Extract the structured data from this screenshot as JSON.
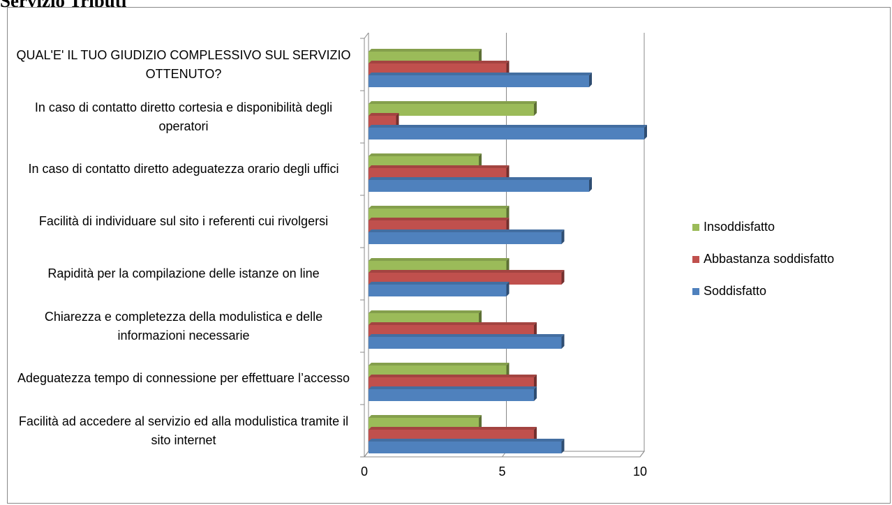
{
  "chart_data": {
    "type": "bar",
    "orientation": "horizontal",
    "title": "Servizio Tributi",
    "categories": [
      "Facilità ad accedere al servizio ed alla modulistica tramite il sito internet",
      "Adeguatezza tempo di connessione per effettuare l’accesso",
      "Chiarezza e completezza della modulistica e delle informazioni necessarie",
      "Rapidità per la compilazione delle istanze on line",
      "Facilità di individuare sul sito i referenti  cui rivolgersi",
      "In caso di contatto diretto adeguatezza orario degli uffici",
      "In caso di contatto diretto cortesia e disponibilità degli operatori",
      "QUAL'E' IL TUO GIUDIZIO COMPLESSIVO SUL SERVIZIO OTTENUTO?"
    ],
    "series": [
      {
        "name": "Insoddisfatto",
        "color": "#9bbb59",
        "values": [
          4,
          5,
          4,
          5,
          5,
          4,
          6,
          4
        ]
      },
      {
        "name": "Abbastanza soddisfatto",
        "color": "#c0504d",
        "values": [
          6,
          6,
          6,
          7,
          5,
          5,
          1,
          5
        ]
      },
      {
        "name": "Soddisfatto",
        "color": "#4f81bd",
        "values": [
          7,
          6,
          7,
          5,
          7,
          8,
          10,
          8
        ]
      }
    ],
    "xlim": [
      0,
      10
    ],
    "xticks": [
      0,
      5,
      10
    ],
    "grid": true,
    "legend": "right"
  }
}
